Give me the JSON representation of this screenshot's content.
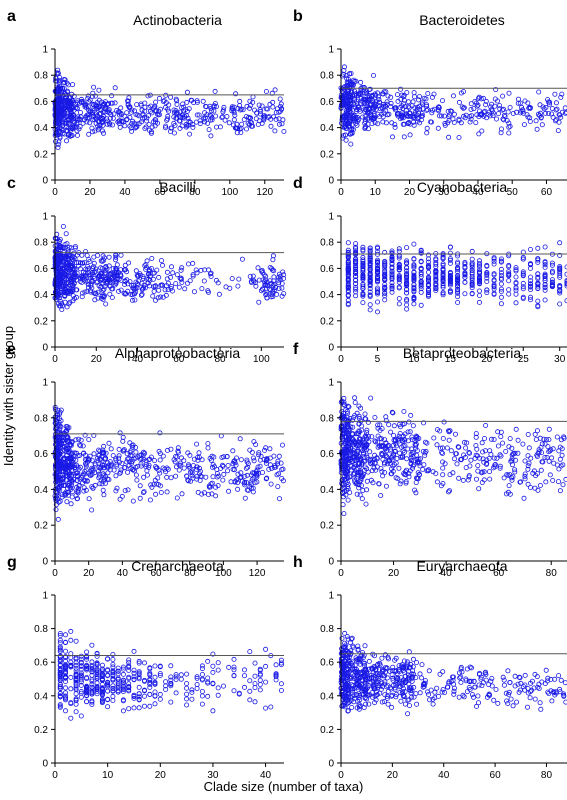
{
  "figure": {
    "ylabel": "Identity with sister group",
    "xlabel": "Clade size (number of taxa)"
  },
  "colors": {
    "points": "#1a1ae6",
    "hline": "#555555",
    "axis": "#000000"
  },
  "chart_data": [
    {
      "type": "scatter",
      "letter": "a",
      "title": "Actinobacteria",
      "xlim": [
        0,
        131
      ],
      "ylim": [
        0,
        1
      ],
      "xticks": [
        0,
        20,
        40,
        60,
        80,
        100,
        120
      ],
      "yticks": [
        0,
        0.2,
        0.4,
        0.6,
        0.8,
        1
      ],
      "hline": 0.65,
      "density": [
        [
          0,
          3,
          160
        ],
        [
          3,
          10,
          140
        ],
        [
          10,
          30,
          140
        ],
        [
          30,
          60,
          110
        ],
        [
          60,
          90,
          95
        ],
        [
          90,
          131,
          110
        ]
      ],
      "ranges": [
        [
          0,
          0.18,
          0.92
        ],
        [
          10,
          0.25,
          0.78
        ],
        [
          40,
          0.28,
          0.72
        ],
        [
          131,
          0.28,
          0.72
        ]
      ],
      "discrete": false
    },
    {
      "type": "scatter",
      "letter": "b",
      "title": "Bacteroidetes",
      "xlim": [
        0,
        66
      ],
      "ylim": [
        0,
        1
      ],
      "xticks": [
        0,
        10,
        20,
        30,
        40,
        50,
        60
      ],
      "yticks": [
        0,
        0.2,
        0.4,
        0.6,
        0.8,
        1
      ],
      "hline": 0.7,
      "density": [
        [
          0,
          3,
          160
        ],
        [
          3,
          10,
          140
        ],
        [
          10,
          25,
          130
        ],
        [
          25,
          45,
          90
        ],
        [
          45,
          66,
          85
        ]
      ],
      "ranges": [
        [
          0,
          0.2,
          0.95
        ],
        [
          10,
          0.25,
          0.82
        ],
        [
          30,
          0.3,
          0.72
        ],
        [
          66,
          0.3,
          0.72
        ]
      ],
      "discrete": false
    },
    {
      "type": "scatter",
      "letter": "c",
      "title": "Bacilli",
      "xlim": [
        0,
        111
      ],
      "ylim": [
        0,
        1
      ],
      "xticks": [
        0,
        20,
        40,
        60,
        80,
        100
      ],
      "yticks": [
        0,
        0.2,
        0.4,
        0.6,
        0.8,
        1
      ],
      "hline": 0.72,
      "density": [
        [
          0,
          3,
          180
        ],
        [
          3,
          10,
          160
        ],
        [
          10,
          30,
          170
        ],
        [
          30,
          55,
          110
        ],
        [
          55,
          95,
          45
        ],
        [
          95,
          111,
          70
        ]
      ],
      "ranges": [
        [
          0,
          0.18,
          1.0
        ],
        [
          10,
          0.25,
          0.85
        ],
        [
          40,
          0.3,
          0.72
        ],
        [
          111,
          0.3,
          0.72
        ]
      ],
      "discrete": false
    },
    {
      "type": "scatter",
      "letter": "d",
      "title": "Cyanobacteria",
      "xlim": [
        0,
        31
      ],
      "ylim": [
        0,
        1
      ],
      "xticks": [
        0,
        5,
        10,
        15,
        20,
        25,
        30
      ],
      "yticks": [
        0,
        0.2,
        0.4,
        0.6,
        0.8,
        1
      ],
      "hline": 0.71,
      "density": [
        [
          0,
          8,
          280
        ],
        [
          8,
          16,
          220
        ],
        [
          16,
          24,
          130
        ],
        [
          24,
          31,
          110
        ]
      ],
      "ranges": [
        [
          0,
          0.2,
          0.92
        ],
        [
          10,
          0.25,
          0.86
        ],
        [
          20,
          0.28,
          0.78
        ],
        [
          31,
          0.25,
          0.86
        ]
      ],
      "discrete": true
    },
    {
      "type": "scatter",
      "letter": "e",
      "title": "Alphaproteobacteria",
      "xlim": [
        0,
        136
      ],
      "ylim": [
        0,
        1
      ],
      "xticks": [
        0,
        20,
        40,
        60,
        80,
        100,
        120
      ],
      "yticks": [
        0,
        0.2,
        0.4,
        0.6,
        0.8,
        1
      ],
      "hline": 0.71,
      "density": [
        [
          0,
          3,
          180
        ],
        [
          3,
          10,
          160
        ],
        [
          10,
          30,
          140
        ],
        [
          30,
          60,
          110
        ],
        [
          60,
          100,
          110
        ],
        [
          100,
          136,
          110
        ]
      ],
      "ranges": [
        [
          0,
          0.18,
          1.0
        ],
        [
          10,
          0.25,
          0.82
        ],
        [
          40,
          0.28,
          0.75
        ],
        [
          136,
          0.28,
          0.72
        ]
      ],
      "discrete": false
    },
    {
      "type": "scatter",
      "letter": "f",
      "title": "Betaproteobacteria",
      "xlim": [
        0,
        86
      ],
      "ylim": [
        0,
        1
      ],
      "xticks": [
        0,
        20,
        40,
        60,
        80
      ],
      "yticks": [
        0,
        0.2,
        0.4,
        0.6,
        0.8,
        1
      ],
      "hline": 0.78,
      "density": [
        [
          0,
          3,
          180
        ],
        [
          3,
          10,
          170
        ],
        [
          10,
          30,
          200
        ],
        [
          30,
          60,
          110
        ],
        [
          60,
          86,
          110
        ]
      ],
      "ranges": [
        [
          0,
          0.22,
          1.0
        ],
        [
          10,
          0.28,
          0.95
        ],
        [
          40,
          0.3,
          0.85
        ],
        [
          86,
          0.28,
          0.8
        ]
      ],
      "discrete": false
    },
    {
      "type": "scatter",
      "letter": "g",
      "title": "Crenarchaeota",
      "xlim": [
        0,
        43.5
      ],
      "ylim": [
        0,
        1
      ],
      "xticks": [
        0,
        10,
        20,
        30,
        40
      ],
      "yticks": [
        0,
        0.2,
        0.4,
        0.6,
        0.8,
        1
      ],
      "hline": 0.64,
      "density": [
        [
          0,
          10,
          260
        ],
        [
          10,
          20,
          130
        ],
        [
          20,
          33,
          55
        ],
        [
          33,
          43.5,
          45
        ]
      ],
      "ranges": [
        [
          0,
          0.22,
          0.84
        ],
        [
          10,
          0.25,
          0.72
        ],
        [
          25,
          0.28,
          0.65
        ],
        [
          43.5,
          0.28,
          0.74
        ]
      ],
      "discrete": true
    },
    {
      "type": "scatter",
      "letter": "h",
      "title": "Euryarchaeota",
      "xlim": [
        0,
        88
      ],
      "ylim": [
        0,
        1
      ],
      "xticks": [
        0,
        20,
        40,
        60,
        80
      ],
      "yticks": [
        0,
        0.2,
        0.4,
        0.6,
        0.8,
        1
      ],
      "hline": 0.65,
      "density": [
        [
          0,
          3,
          150
        ],
        [
          3,
          10,
          150
        ],
        [
          10,
          30,
          200
        ],
        [
          30,
          60,
          90
        ],
        [
          60,
          88,
          70
        ]
      ],
      "ranges": [
        [
          0,
          0.2,
          0.85
        ],
        [
          10,
          0.25,
          0.75
        ],
        [
          40,
          0.28,
          0.62
        ],
        [
          88,
          0.28,
          0.62
        ]
      ],
      "discrete": false
    }
  ]
}
